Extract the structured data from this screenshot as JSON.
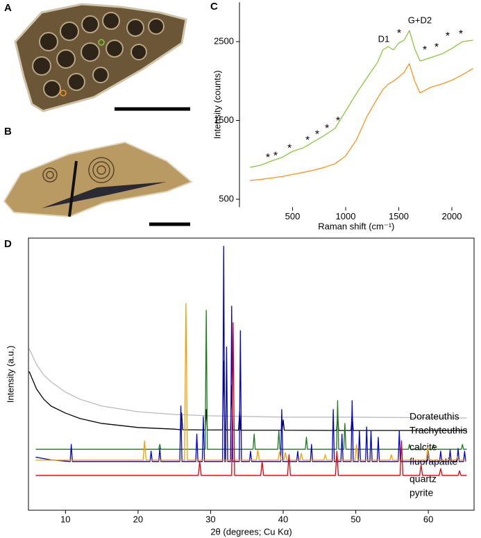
{
  "panel_labels": [
    "A",
    "B",
    "C",
    "D"
  ],
  "chart_data": [
    {
      "type": "line",
      "xlabel": "Raman shift (cm⁻¹)",
      "ylabel": "Intensity (counts)",
      "xlim": [
        0,
        2200
      ],
      "ylim": [
        400,
        3000
      ],
      "xticks": [
        500,
        1000,
        1500,
        2000
      ],
      "yticks": [
        500,
        1500,
        2500
      ],
      "x": [
        100,
        200,
        300,
        400,
        500,
        600,
        700,
        800,
        900,
        1000,
        1100,
        1200,
        1300,
        1350,
        1400,
        1450,
        1500,
        1550,
        1600,
        1650,
        1700,
        1800,
        1900,
        2000,
        2100,
        2200
      ],
      "series": [
        {
          "color": "#8cc63f",
          "values": [
            905,
            932,
            985,
            1030,
            1108,
            1152,
            1231,
            1310,
            1399,
            1619,
            1839,
            2042,
            2236,
            2394,
            2438,
            2394,
            2482,
            2518,
            2641,
            2412,
            2253,
            2297,
            2341,
            2412,
            2500,
            2518
          ]
        },
        {
          "color": "#f7941d",
          "values": [
            738,
            752,
            770,
            788,
            815,
            840,
            870,
            905,
            950,
            1050,
            1250,
            1550,
            1780,
            1890,
            1960,
            2000,
            2050,
            2110,
            2220,
            2000,
            1850,
            1920,
            1960,
            2010,
            2080,
            2160
          ]
        }
      ],
      "annotations": [
        {
          "text": "*",
          "x": 268,
          "y": 1020
        },
        {
          "text": "*",
          "x": 340,
          "y": 1046
        },
        {
          "text": "*",
          "x": 471,
          "y": 1143
        },
        {
          "text": "*",
          "x": 641,
          "y": 1240
        },
        {
          "text": "*",
          "x": 732,
          "y": 1319
        },
        {
          "text": "*",
          "x": 824,
          "y": 1390
        },
        {
          "text": "*",
          "x": 928,
          "y": 1487
        },
        {
          "text": "D1",
          "x": 1359,
          "y": 2526
        },
        {
          "text": "*",
          "x": 1503,
          "y": 2597
        },
        {
          "text": "G+D2",
          "x": 1699,
          "y": 2764
        },
        {
          "text": "*",
          "x": 1745,
          "y": 2385
        },
        {
          "text": "*",
          "x": 1856,
          "y": 2421
        },
        {
          "text": "*",
          "x": 1961,
          "y": 2562
        },
        {
          "text": "*",
          "x": 2085,
          "y": 2588
        }
      ]
    },
    {
      "type": "line",
      "xlabel": "2θ (degrees; Cu Kα)",
      "ylabel": "Intensity (a.u.)",
      "xlim": [
        4.9,
        66.3
      ],
      "ylim": [
        0,
        100
      ],
      "xticks": [
        10,
        20,
        30,
        40,
        50,
        60
      ],
      "series": [
        {
          "name": "Dorateuthis",
          "color": "#bbbbbb",
          "x": [
            5,
            6,
            7,
            8,
            10,
            12,
            15,
            20,
            25,
            30,
            40,
            50,
            65.3
          ],
          "values": [
            59.4,
            53.6,
            49.7,
            47.2,
            43.4,
            40.8,
            38.3,
            36.2,
            35.2,
            34.7,
            34.2,
            34.2,
            33.9
          ]
        },
        {
          "name": "Trachyteuthis",
          "color": "#000000",
          "x": [
            5,
            6,
            7,
            8,
            10,
            12,
            15,
            20,
            25,
            25.85,
            26,
            26.15,
            29.25,
            29.4,
            29.55,
            31.65,
            31.8,
            31.95,
            32.75,
            32.9,
            33.05,
            33.85,
            34,
            34.15,
            39.85,
            40,
            40.15,
            47.35,
            47.5,
            47.65,
            49.35,
            49.5,
            49.65,
            65.3
          ],
          "values": [
            51,
            44.6,
            40.8,
            38.3,
            35.7,
            33.7,
            31.9,
            30.4,
            29.8,
            29.6,
            35.7,
            29.6,
            29.5,
            37,
            29.5,
            29.5,
            54.8,
            29.5,
            29.5,
            45.9,
            29.5,
            29.4,
            36.2,
            29.4,
            29.4,
            33.2,
            29.4,
            29.3,
            34.4,
            29.3,
            29.3,
            35.7,
            29.3,
            29.3
          ]
        },
        {
          "name": "calcite",
          "color": "#1a7a1a",
          "x": [
            5.9,
            22.85,
            23,
            23.15,
            29.25,
            29.4,
            29.55,
            35.85,
            36,
            36.15,
            39.25,
            39.4,
            39.55,
            43.05,
            43.2,
            43.35,
            47.35,
            47.5,
            47.65,
            48.35,
            48.5,
            48.65,
            57.25,
            57.4,
            57.55,
            60.55,
            60.7,
            60.85,
            64.55,
            64.7,
            64.85,
            65.3
          ],
          "values": [
            22.4,
            22.4,
            24.2,
            22.4,
            22.4,
            73.5,
            22.4,
            22.4,
            28,
            22.4,
            22.4,
            29.3,
            22.4,
            22.4,
            26.8,
            22.4,
            22.4,
            40.3,
            22.4,
            22.4,
            31.9,
            22.4,
            22.4,
            24.2,
            22.4,
            22.4,
            24.2,
            22.4,
            22.4,
            24.2,
            22.4,
            22.4
          ]
        },
        {
          "name": "fluorapatite",
          "color": "#0000e0",
          "x": [
            5.9,
            8,
            10.65,
            10.8,
            10.95,
            21.65,
            21.8,
            21.95,
            22.85,
            23,
            23.15,
            25.75,
            25.9,
            26.05,
            27.95,
            28.1,
            28.25,
            28.85,
            29,
            29.15,
            31.65,
            31.8,
            31.95,
            32.05,
            32.2,
            32.35,
            32.75,
            32.9,
            33.05,
            33.95,
            34.1,
            34.25,
            35.35,
            35.5,
            35.65,
            39.65,
            39.8,
            39.95,
            41.85,
            42,
            42.15,
            43.75,
            43.9,
            44.05,
            46.75,
            46.9,
            47.05,
            47.95,
            48.1,
            48.25,
            49.35,
            49.5,
            49.65,
            50.35,
            50.5,
            50.65,
            51.35,
            51.5,
            51.65,
            51.95,
            52.1,
            52.25,
            52.95,
            53.1,
            53.25,
            55.85,
            56,
            56.15,
            59.85,
            60,
            60.15,
            61.55,
            61.7,
            61.85,
            62.85,
            63,
            63.15,
            63.95,
            64.1,
            64.25,
            64.85,
            65,
            65.15
          ],
          "values": [
            19.5,
            18.5,
            17.9,
            24.2,
            17.9,
            17.9,
            21.7,
            17.9,
            17.9,
            22.7,
            17.9,
            17.9,
            38.3,
            17.9,
            17.9,
            28,
            17.9,
            17.9,
            34.4,
            17.9,
            17.9,
            97,
            17.9,
            17.9,
            60,
            17.9,
            17.9,
            75,
            17.9,
            17.9,
            66,
            17.9,
            17.9,
            21.7,
            17.9,
            17.9,
            37,
            17.9,
            17.9,
            21.7,
            17.9,
            17.9,
            24.2,
            17.9,
            17.9,
            37,
            17.9,
            17.9,
            28,
            17.9,
            17.9,
            40.3,
            17.9,
            17.9,
            29.3,
            17.9,
            17.9,
            30.6,
            17.9,
            17.9,
            29.3,
            17.9,
            17.9,
            26.8,
            17.9,
            17.9,
            29.3,
            17.9,
            17.9,
            21.7,
            17.9,
            17.9,
            21.7,
            17.9,
            17.9,
            22.2,
            17.9,
            17.9,
            22.7,
            17.9,
            17.9,
            21.7,
            17.9
          ]
        },
        {
          "name": "quartz",
          "color": "#f5a000",
          "x": [
            5.9,
            20.7,
            20.9,
            21.1,
            26.4,
            26.6,
            26.8,
            36.3,
            36.5,
            36.7,
            39.3,
            39.5,
            39.7,
            40.1,
            40.3,
            40.5,
            42.3,
            42.5,
            42.7,
            45.6,
            45.8,
            46,
            49.9,
            50.1,
            50.3,
            54.7,
            54.9,
            55.1,
            59.7,
            59.9,
            60.1,
            63.8,
            64,
            64.2,
            65.3
          ],
          "values": [
            18.4,
            18.4,
            25.5,
            18.4,
            18.4,
            76,
            18.4,
            18.4,
            22.2,
            18.4,
            18.4,
            21.7,
            18.4,
            18.4,
            21.2,
            18.4,
            18.4,
            20.9,
            18.4,
            18.4,
            20.4,
            18.4,
            18.4,
            24.2,
            18.4,
            18.4,
            20.4,
            18.4,
            18.4,
            23,
            18.4,
            18.4,
            19.6,
            18.4,
            18.4
          ]
        },
        {
          "name": "pyrite",
          "color": "#e00000",
          "x": [
            5.9,
            28.3,
            28.5,
            28.7,
            32.9,
            33.1,
            33.3,
            36.9,
            37.1,
            37.3,
            40.6,
            40.8,
            41,
            47.2,
            47.4,
            47.6,
            56.1,
            56.3,
            56.5,
            58.8,
            59,
            59.2,
            61.5,
            61.7,
            61.9,
            64.1,
            64.3,
            64.5,
            65.3
          ],
          "values": [
            12.8,
            12.8,
            17.9,
            12.8,
            12.8,
            68.9,
            12.8,
            12.8,
            17.9,
            12.8,
            12.8,
            20.4,
            12.8,
            12.8,
            21.7,
            12.8,
            12.8,
            25.5,
            12.8,
            12.8,
            16.6,
            12.8,
            12.8,
            15.3,
            12.8,
            12.8,
            14.5,
            12.8,
            12.8
          ]
        }
      ]
    }
  ]
}
